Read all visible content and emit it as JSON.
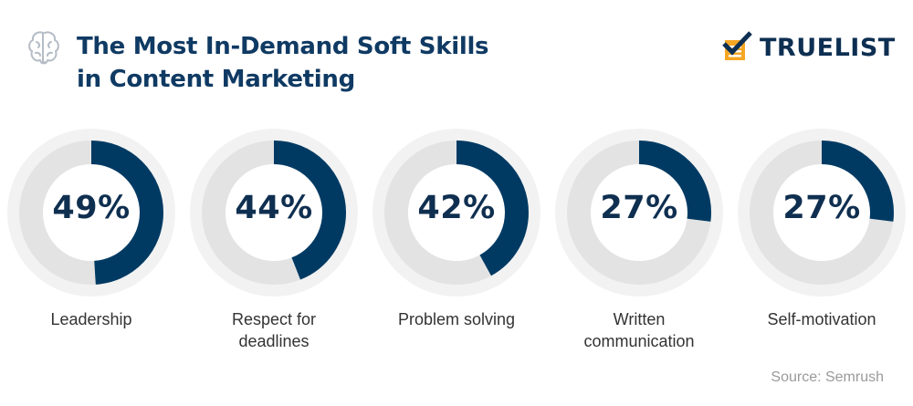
{
  "header": {
    "title_line1": "The Most In-Demand Soft Skills",
    "title_line2": "in Content Marketing",
    "icon": "brain-icon"
  },
  "logo": {
    "text": "TRUELIST",
    "icon": "checklist-icon"
  },
  "colors": {
    "accent": "#003a63",
    "track": "#e3e3e3",
    "outer_ring": "#f2f2f2",
    "title": "#0f3a63",
    "logo_orange": "#f5a623"
  },
  "chart_data": {
    "type": "donut",
    "title": "The Most In-Demand Soft Skills in Content Marketing",
    "unit": "%",
    "categories": [
      "Leadership",
      "Respect for deadlines",
      "Problem solving",
      "Written communication",
      "Self-motivation"
    ],
    "values": [
      49,
      44,
      42,
      27,
      27
    ],
    "labels": [
      "49%",
      "44%",
      "42%",
      "27%",
      "27%"
    ],
    "label_lines": [
      [
        "Leadership"
      ],
      [
        "Respect for",
        "deadlines"
      ],
      [
        "Problem solving"
      ],
      [
        "Written",
        "communication"
      ],
      [
        "Self-motivation"
      ]
    ]
  },
  "source": "Source: Semrush"
}
